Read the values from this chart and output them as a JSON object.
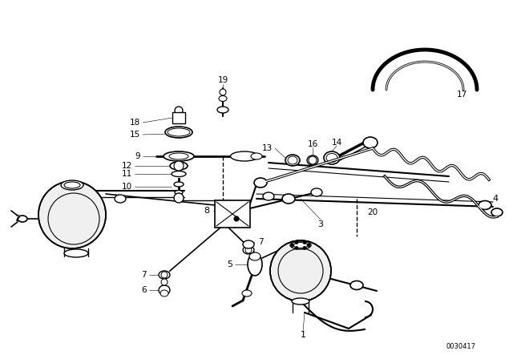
{
  "bg_color": "#ffffff",
  "line_color": "#000000",
  "diagram_id": "0030417",
  "lw": 1.0,
  "fig_w": 6.4,
  "fig_h": 4.48,
  "dpi": 100
}
